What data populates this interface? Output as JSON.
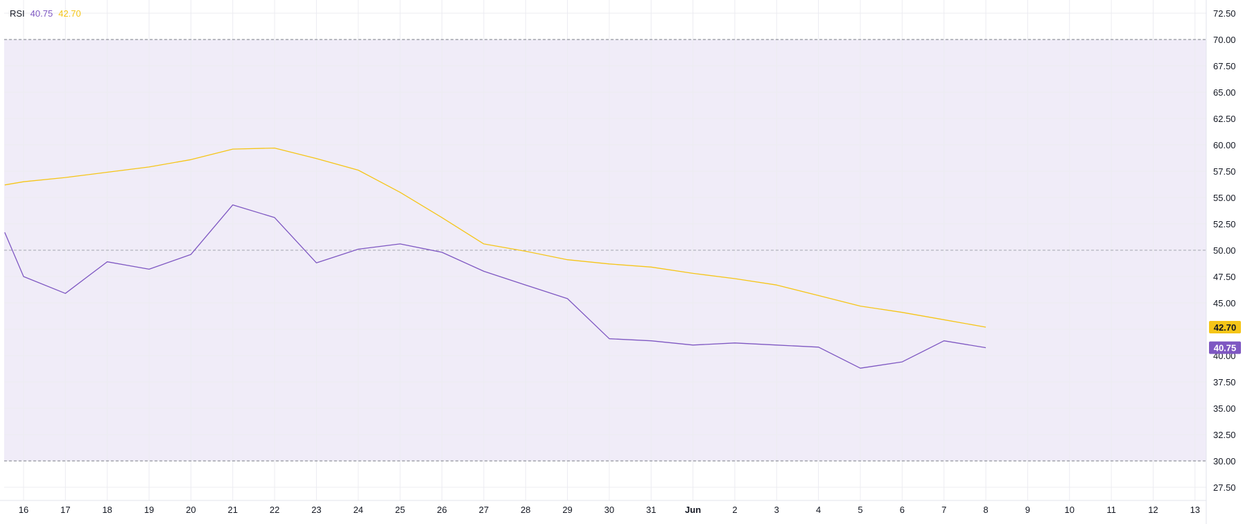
{
  "indicator": {
    "name": "RSI",
    "rsi_value": "40.75",
    "ma_value": "42.70"
  },
  "colors": {
    "rsi": "#7e57c2",
    "ma": "#f5c518",
    "band_fill": "#f0ecf8",
    "grid": "#ececf1",
    "band_line": "#787b86",
    "mid_line": "#a3a6af",
    "ma_tag_text": "#131722",
    "rsi_tag_text": "#ffffff"
  },
  "chart_data": {
    "type": "line",
    "ylim": [
      26.25,
      73.75
    ],
    "y_ticks": [
      "72.50",
      "70.00",
      "67.50",
      "65.00",
      "62.50",
      "60.00",
      "57.50",
      "55.00",
      "52.50",
      "50.00",
      "47.50",
      "45.00",
      "42.50",
      "40.00",
      "37.50",
      "35.00",
      "32.50",
      "30.00",
      "27.50"
    ],
    "x_ticks": [
      "16",
      "17",
      "18",
      "19",
      "20",
      "21",
      "22",
      "23",
      "24",
      "25",
      "26",
      "27",
      "28",
      "29",
      "30",
      "31",
      "Jun",
      "2",
      "3",
      "4",
      "5",
      "6",
      "7",
      "8",
      "9",
      "10",
      "11",
      "12",
      "13"
    ],
    "x_ticks_bold": [
      "Jun"
    ],
    "band_upper": 70.0,
    "band_lower": 30.0,
    "band_middle": 50.0,
    "series": [
      {
        "key": "rsi",
        "points": [
          [
            -0.45,
            51.7
          ],
          [
            0,
            47.5
          ],
          [
            1,
            45.9
          ],
          [
            2,
            48.9
          ],
          [
            3,
            48.2
          ],
          [
            4,
            49.6
          ],
          [
            5,
            54.3
          ],
          [
            6,
            53.1
          ],
          [
            7,
            48.8
          ],
          [
            8,
            50.1
          ],
          [
            9,
            50.6
          ],
          [
            10,
            49.8
          ],
          [
            11,
            48.0
          ],
          [
            12,
            46.7
          ],
          [
            13,
            45.4
          ],
          [
            14,
            41.6
          ],
          [
            15,
            41.4
          ],
          [
            16,
            41.0
          ],
          [
            17,
            41.2
          ],
          [
            18,
            41.0
          ],
          [
            19,
            40.8
          ],
          [
            20,
            38.8
          ],
          [
            21,
            39.4
          ],
          [
            22,
            41.4
          ],
          [
            23,
            40.75
          ]
        ]
      },
      {
        "key": "ma",
        "points": [
          [
            -0.45,
            56.2
          ],
          [
            0,
            56.5
          ],
          [
            1,
            56.9
          ],
          [
            2,
            57.4
          ],
          [
            3,
            57.9
          ],
          [
            4,
            58.6
          ],
          [
            5,
            59.6
          ],
          [
            6,
            59.7
          ],
          [
            7,
            58.7
          ],
          [
            8,
            57.6
          ],
          [
            9,
            55.5
          ],
          [
            10,
            53.1
          ],
          [
            11,
            50.6
          ],
          [
            12,
            49.9
          ],
          [
            13,
            49.1
          ],
          [
            14,
            48.7
          ],
          [
            15,
            48.4
          ],
          [
            16,
            47.8
          ],
          [
            17,
            47.3
          ],
          [
            18,
            46.7
          ],
          [
            19,
            45.7
          ],
          [
            20,
            44.7
          ],
          [
            21,
            44.1
          ],
          [
            22,
            43.4
          ],
          [
            23,
            42.7
          ]
        ]
      }
    ],
    "last_value_tags": [
      {
        "series": "ma",
        "label": "42.70",
        "value": 42.7
      },
      {
        "series": "rsi",
        "label": "40.75",
        "value": 40.75
      }
    ]
  }
}
